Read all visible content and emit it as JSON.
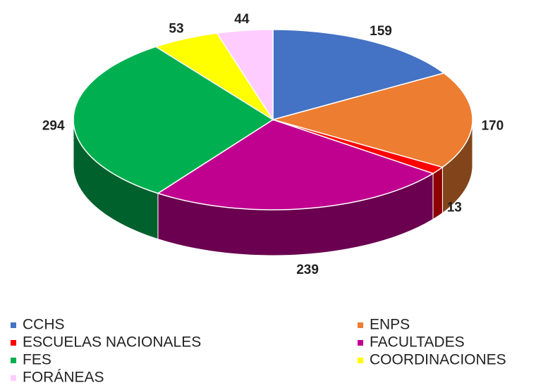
{
  "chart_data": {
    "type": "pie",
    "categories": [
      "CCHS",
      "ENPS",
      "ESCUELAS NACIONALES",
      "FACULTADES",
      "FES",
      "COORDINACIONES",
      "FORÁNEAS"
    ],
    "values": [
      159,
      170,
      13,
      239,
      294,
      53,
      44
    ],
    "colors": [
      "#4472c4",
      "#ed7d31",
      "#ff0000",
      "#c0008f",
      "#00b050",
      "#ffff00",
      "#ffccff"
    ],
    "legend": "bottom"
  }
}
